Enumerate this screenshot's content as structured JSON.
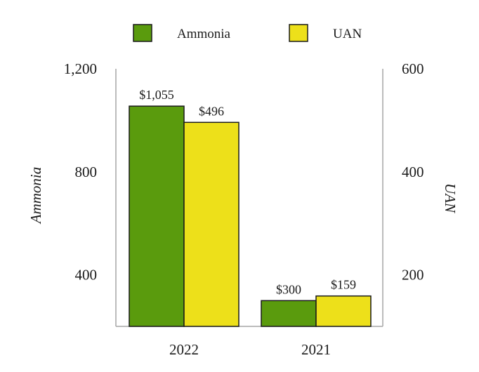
{
  "chart_data": {
    "type": "bar",
    "categories": [
      "2022",
      "2021"
    ],
    "series": [
      {
        "name": "Ammonia",
        "axis": "left",
        "color": "#5a9b0d",
        "values": [
          1055,
          300
        ],
        "labels": [
          "$1,055",
          "$300"
        ]
      },
      {
        "name": "UAN",
        "axis": "right",
        "color": "#ede01a",
        "values": [
          496,
          159
        ],
        "labels": [
          "$496",
          "$159"
        ]
      }
    ],
    "left_axis": {
      "title": "Ammonia",
      "ticks": [
        400,
        800,
        1200
      ],
      "tick_labels": [
        "400",
        "800",
        "1,200"
      ],
      "min": 200,
      "max": 1200
    },
    "right_axis": {
      "title": "UAN",
      "ticks": [
        200,
        400,
        600
      ],
      "tick_labels": [
        "200",
        "400",
        "600"
      ],
      "min": 100,
      "max": 600
    },
    "legend": {
      "position": "top-center"
    },
    "grid": false,
    "bar_border_color": "#1a1a1a",
    "axis_color": "#a6a6a6"
  }
}
